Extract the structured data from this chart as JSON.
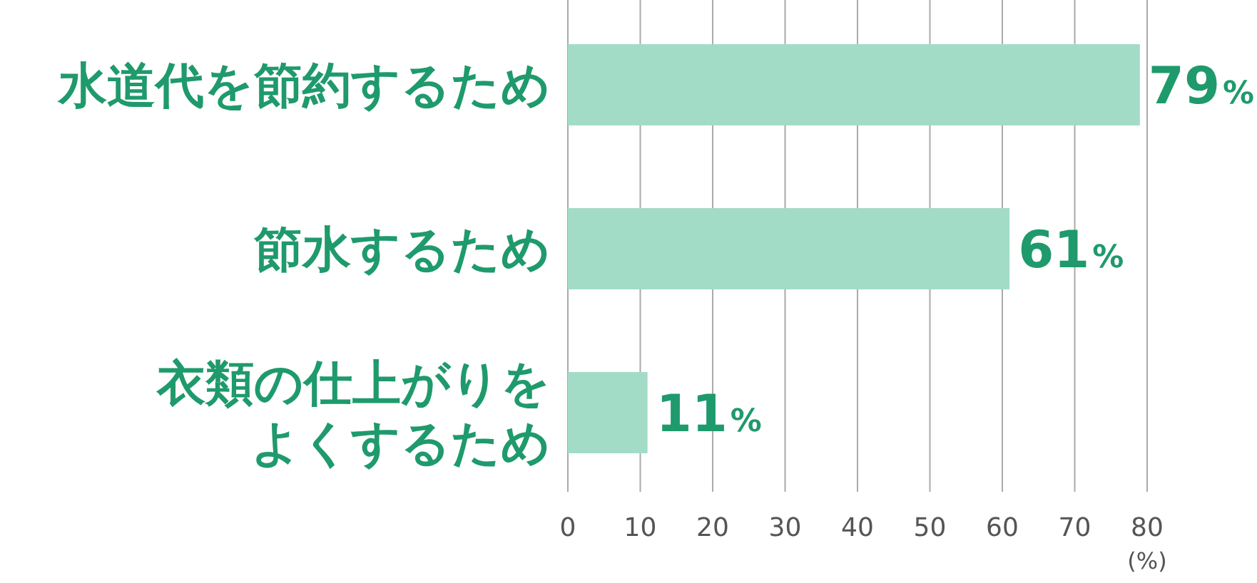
{
  "chart_data": {
    "type": "bar",
    "orientation": "horizontal",
    "categories": [
      "水道代を節約するため",
      "節水するため",
      "衣類の仕上がりをよくするため"
    ],
    "values": [
      79,
      61,
      11
    ],
    "value_labels": [
      "79%",
      "61%",
      "11%"
    ],
    "color": "#a3dcc6",
    "xlim": [
      0,
      80
    ],
    "xticks": [
      0,
      10,
      20,
      30,
      40,
      50,
      60,
      70,
      80
    ],
    "xlabel": "(%)",
    "grid": "x"
  }
}
